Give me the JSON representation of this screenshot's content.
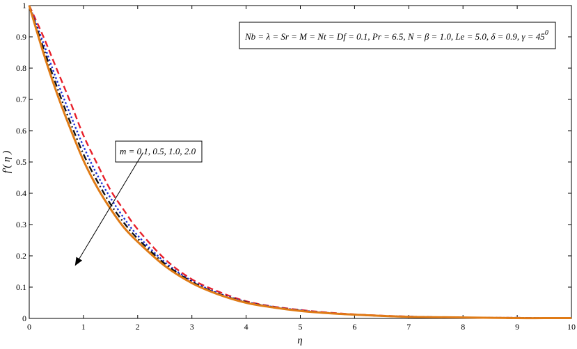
{
  "chart_data": {
    "type": "line",
    "xlabel": "η",
    "ylabel": "f′( η )",
    "xlim": [
      0,
      10
    ],
    "ylim": [
      0,
      1
    ],
    "x_ticks": [
      0,
      1,
      2,
      3,
      4,
      5,
      6,
      7,
      8,
      9,
      10
    ],
    "y_ticks": [
      0,
      0.1,
      0.2,
      0.3,
      0.4,
      0.5,
      0.6,
      0.7,
      0.8,
      0.9,
      1
    ],
    "x_tick_labels": [
      "0",
      "1",
      "2",
      "3",
      "4",
      "5",
      "6",
      "7",
      "8",
      "9",
      "10"
    ],
    "y_tick_labels": [
      "0",
      "0.1",
      "0.2",
      "0.3",
      "0.4",
      "0.5",
      "0.6",
      "0.7",
      "0.8",
      "0.9",
      "1"
    ],
    "grid": false,
    "annotations": {
      "params": "Nb = λ = Sr = M = Nt = Df = 0.1, Pr = 6.5, N = β = 1.0, Le = 5.0, δ = 0.9, γ = 45",
      "params_superscript": "0",
      "m_label": "m = 0.1, 0.5, 1.0, 2.0",
      "arrow": {
        "from": [
          2.1,
          0.53
        ],
        "to": [
          0.85,
          0.17
        ]
      }
    },
    "x": [
      0,
      0.25,
      0.5,
      0.75,
      1,
      1.25,
      1.5,
      1.75,
      2,
      2.5,
      3,
      3.5,
      4,
      4.5,
      5,
      5.5,
      6,
      6.5,
      7,
      7.5,
      8,
      8.5,
      9,
      9.5,
      10
    ],
    "series": [
      {
        "color": "#e8202a",
        "dash": "dashed",
        "values": [
          1.0,
          0.905,
          0.8,
          0.695,
          0.585,
          0.495,
          0.41,
          0.345,
          0.285,
          0.19,
          0.125,
          0.085,
          0.055,
          0.038,
          0.027,
          0.019,
          0.013,
          0.009,
          0.006,
          0.004,
          0.003,
          0.002,
          0.002,
          0.001,
          0.001
        ]
      },
      {
        "color": "#1b2fd6",
        "dash": "dotted",
        "values": [
          1.0,
          0.885,
          0.765,
          0.655,
          0.55,
          0.46,
          0.385,
          0.32,
          0.265,
          0.18,
          0.12,
          0.08,
          0.053,
          0.037,
          0.026,
          0.018,
          0.012,
          0.008,
          0.006,
          0.004,
          0.003,
          0.002,
          0.002,
          0.001,
          0.001
        ]
      },
      {
        "color": "#111111",
        "dash": "dashdot",
        "values": [
          1.0,
          0.87,
          0.745,
          0.63,
          0.525,
          0.44,
          0.365,
          0.305,
          0.255,
          0.175,
          0.117,
          0.078,
          0.052,
          0.036,
          0.025,
          0.017,
          0.012,
          0.008,
          0.005,
          0.004,
          0.003,
          0.002,
          0.001,
          0.001,
          0.001
        ]
      },
      {
        "color": "#e07b16",
        "dash": "solid",
        "values": [
          1.0,
          0.855,
          0.725,
          0.61,
          0.505,
          0.42,
          0.35,
          0.29,
          0.245,
          0.168,
          0.113,
          0.076,
          0.05,
          0.035,
          0.024,
          0.017,
          0.012,
          0.008,
          0.005,
          0.004,
          0.003,
          0.002,
          0.001,
          0.001,
          0.001
        ]
      }
    ]
  }
}
